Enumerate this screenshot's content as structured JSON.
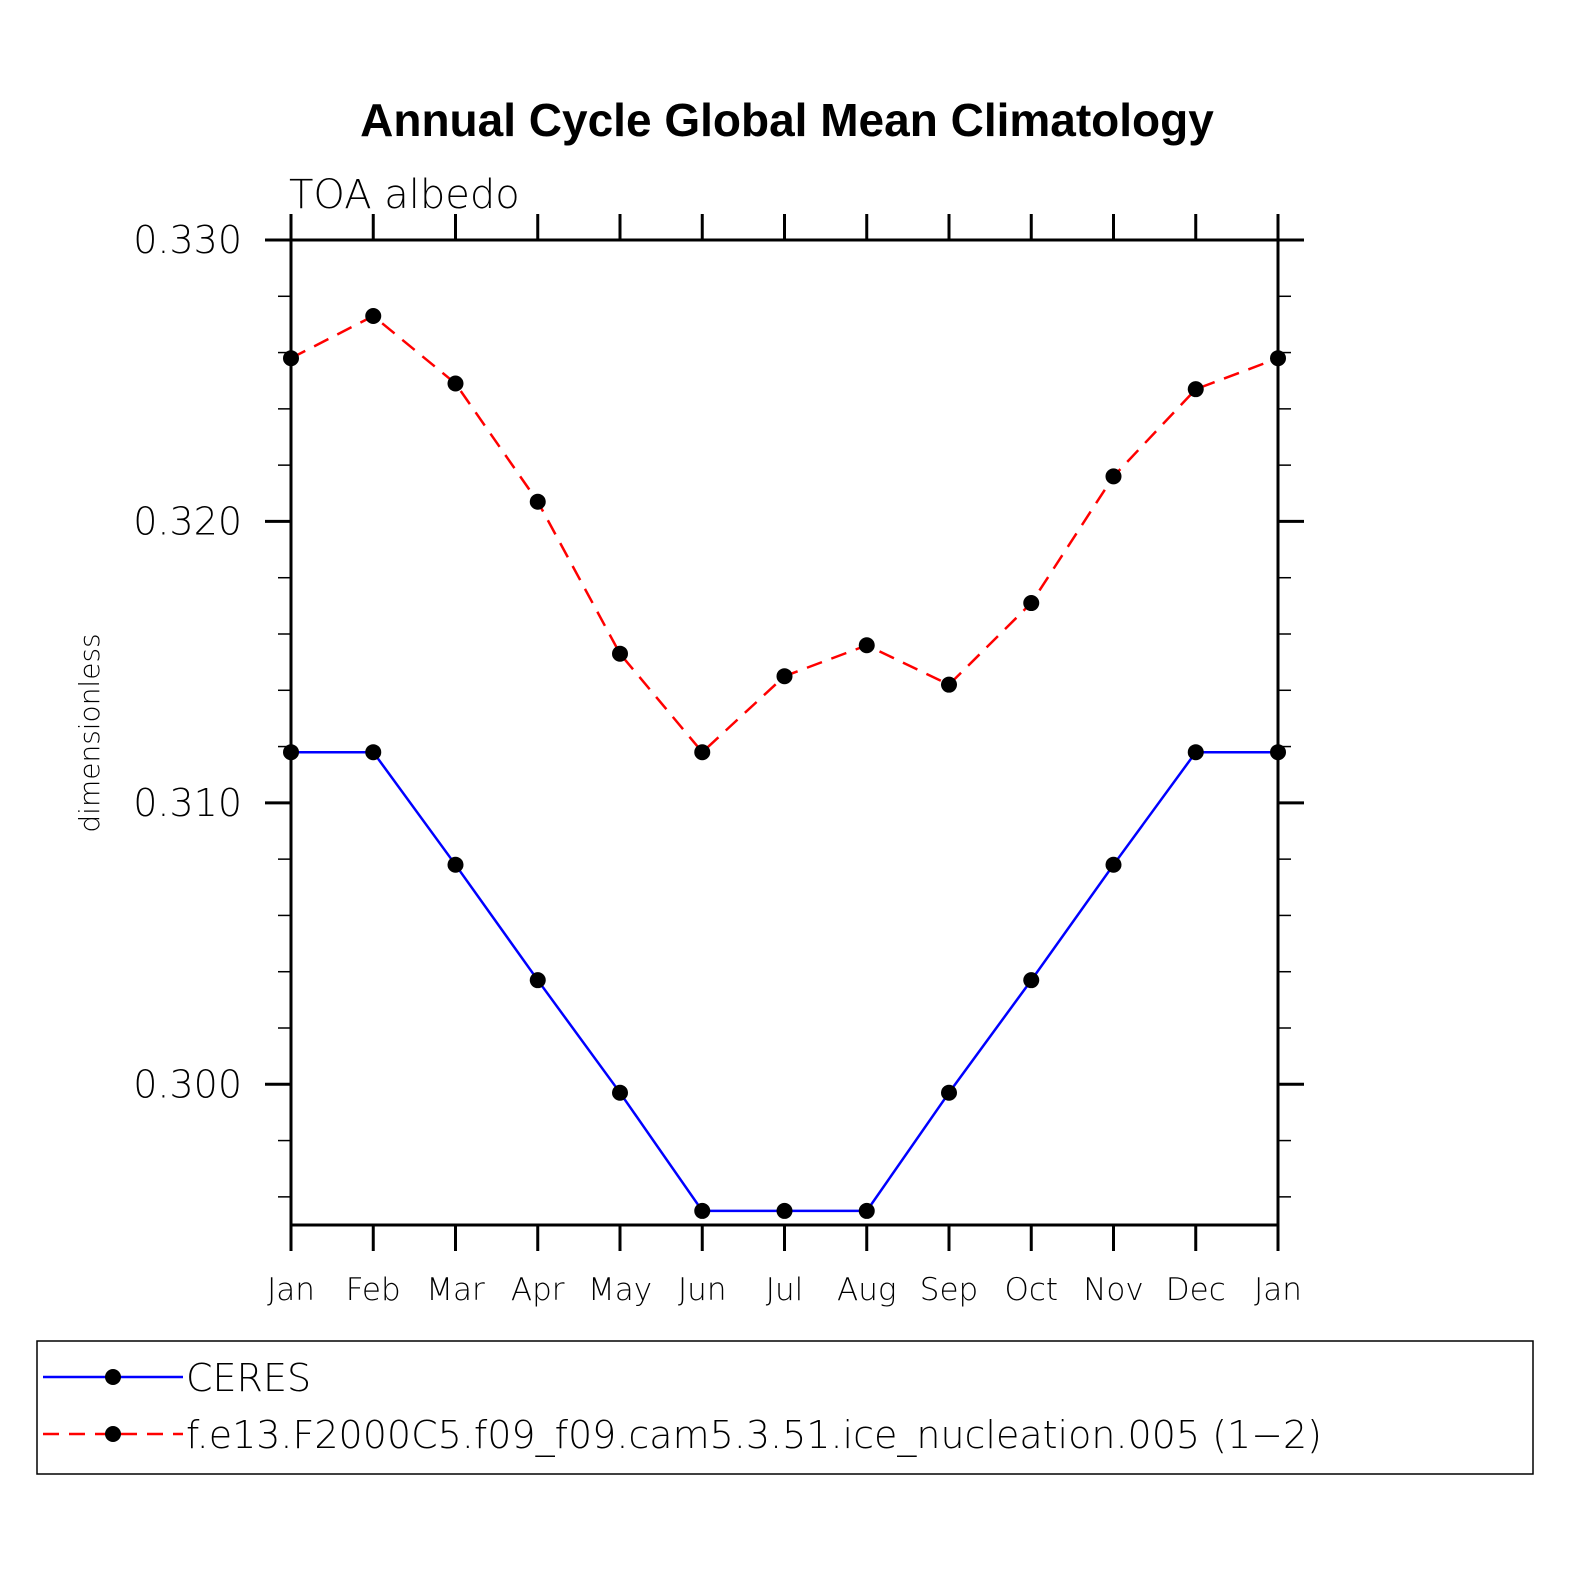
{
  "chart_data": {
    "type": "line",
    "title": "Annual Cycle Global Mean Climatology",
    "subtitle": "TOA albedo",
    "xlabel": "",
    "ylabel": "dimensionless",
    "categories": [
      "Jan",
      "Feb",
      "Mar",
      "Apr",
      "May",
      "Jun",
      "Jul",
      "Aug",
      "Sep",
      "Oct",
      "Nov",
      "Dec",
      "Jan"
    ],
    "ylim": [
      0.295,
      0.33
    ],
    "yticks": [
      0.3,
      0.31,
      0.32,
      0.33
    ],
    "ytick_labels": [
      "0.300",
      "0.310",
      "0.320",
      "0.330"
    ],
    "yminor_step": 0.002,
    "series": [
      {
        "name": "CERES",
        "color": "#0000ff",
        "dash": "solid",
        "marker": "filled-circle",
        "values": [
          0.3118,
          0.3118,
          0.3078,
          0.3037,
          0.2997,
          0.2955,
          0.2955,
          0.2955,
          0.2997,
          0.3037,
          0.3078,
          0.3118,
          0.3118
        ]
      },
      {
        "name": "f.e13.F2000C5.f09_f09.cam5.3.51.ice_nucleation.005 (1−2)",
        "color": "#ff0000",
        "dash": "dashed",
        "marker": "filled-circle",
        "values": [
          0.3258,
          0.3273,
          0.3249,
          0.3207,
          0.3153,
          0.3118,
          0.3145,
          0.3156,
          0.3142,
          0.3171,
          0.3216,
          0.3247,
          0.3258
        ]
      }
    ],
    "legend_position": "bottom",
    "grid": false
  }
}
